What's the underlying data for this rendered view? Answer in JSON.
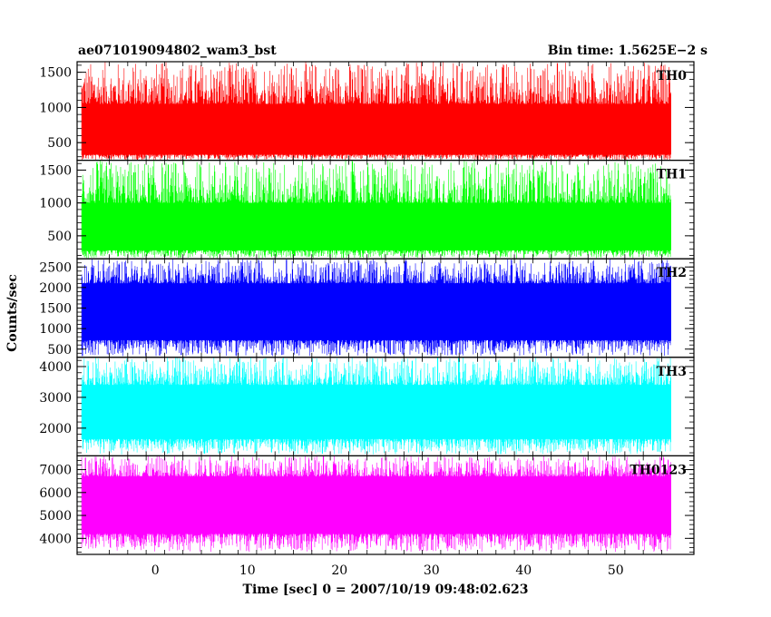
{
  "header": {
    "left_title": "ae071019094802_wam3_bst",
    "right_title": "Bin time: 1.5625E−2 s"
  },
  "chart_data": {
    "type": "line",
    "title": "ae071019094802_wam3_bst",
    "subtitle": "Bin time: 1.5625E−2 s",
    "xlabel": "Time [sec] 0 = 2007/10/19 09:48:02.623",
    "ylabel": "Counts/sec",
    "xlim": [
      -8.5,
      58.5
    ],
    "data_xrange": [
      -8,
      56
    ],
    "bin_time": 0.015625,
    "x_ticks": [
      0,
      10,
      20,
      30,
      40,
      50
    ],
    "grid": false,
    "panels": [
      {
        "name": "TH0",
        "color": "#ff0000",
        "ylim": [
          250,
          1650
        ],
        "y_ticks": [
          500,
          1000,
          1500
        ],
        "band": [
          330,
          1050
        ],
        "baseline": 640,
        "spike_max": 1650,
        "dip_min": 250
      },
      {
        "name": "TH1",
        "color": "#00ff00",
        "ylim": [
          150,
          1650
        ],
        "y_ticks": [
          500,
          1000,
          1500
        ],
        "band": [
          280,
          1000
        ],
        "baseline": 600,
        "spike_max": 1650,
        "dip_min": 160
      },
      {
        "name": "TH2",
        "color": "#0000ff",
        "ylim": [
          300,
          2700
        ],
        "y_ticks": [
          500,
          1000,
          1500,
          2000,
          2500
        ],
        "band": [
          720,
          2100
        ],
        "baseline": 1350,
        "spike_max": 2700,
        "dip_min": 330
      },
      {
        "name": "TH3",
        "color": "#00ffff",
        "ylim": [
          1100,
          4300
        ],
        "y_ticks": [
          2000,
          3000,
          4000
        ],
        "band": [
          1650,
          3400
        ],
        "baseline": 2450,
        "spike_max": 4300,
        "dip_min": 1150
      },
      {
        "name": "TH0123",
        "color": "#ff00ff",
        "ylim": [
          3300,
          7600
        ],
        "y_ticks": [
          4000,
          5000,
          6000,
          7000
        ],
        "band": [
          4200,
          6700
        ],
        "baseline": 5300,
        "spike_max": 7600,
        "dip_min": 3400
      }
    ]
  }
}
